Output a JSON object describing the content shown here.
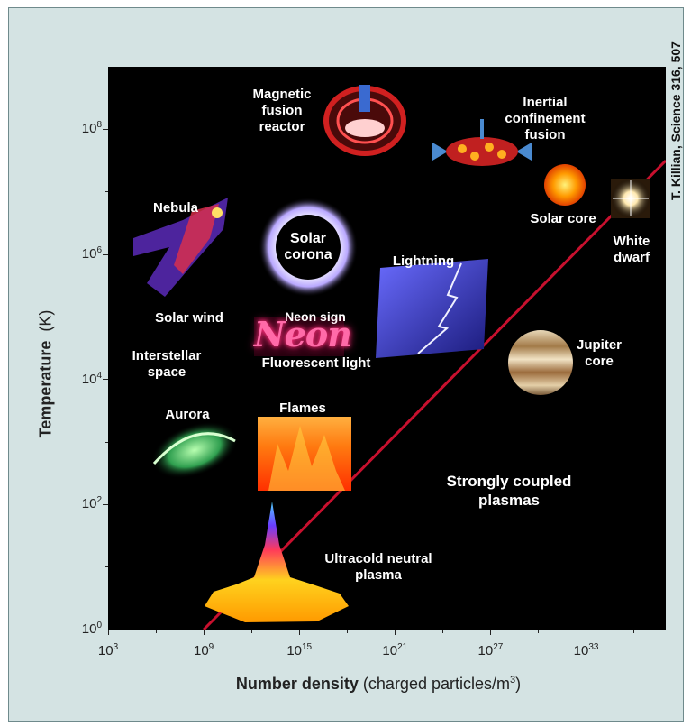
{
  "credit": "T. Killian, Science 316, 507",
  "chart_data": {
    "type": "scatter",
    "title": "",
    "ylabel": "Temperature",
    "ylabel_unit": "(K)",
    "xlabel": "Number density",
    "xlabel_unit": "(charged particles/m",
    "xlabel_unit_exp": "3",
    "xlabel_unit_close": ")",
    "xscale": "log",
    "yscale": "log",
    "x_exponent_range": [
      3,
      38
    ],
    "y_exponent_range": [
      0,
      9
    ],
    "x_ticks": [
      {
        "base": "10",
        "exp": "3",
        "value_exp": 3
      },
      {
        "base": "10",
        "exp": "9",
        "value_exp": 9
      },
      {
        "base": "10",
        "exp": "15",
        "value_exp": 15
      },
      {
        "base": "10",
        "exp": "21",
        "value_exp": 21
      },
      {
        "base": "10",
        "exp": "27",
        "value_exp": 27
      },
      {
        "base": "10",
        "exp": "33",
        "value_exp": 33
      }
    ],
    "y_ticks": [
      {
        "base": "10",
        "exp": "0",
        "value_exp": 0
      },
      {
        "base": "10",
        "exp": "2",
        "value_exp": 2
      },
      {
        "base": "10",
        "exp": "4",
        "value_exp": 4
      },
      {
        "base": "10",
        "exp": "6",
        "value_exp": 6
      },
      {
        "base": "10",
        "exp": "8",
        "value_exp": 8
      }
    ],
    "boundary_line": {
      "label": "Strongly coupled plasmas",
      "color": "#c8102e",
      "points_log10": [
        [
          9,
          0
        ],
        [
          38,
          7.5
        ]
      ]
    },
    "points": [
      {
        "label": [
          "Magnetic",
          "fusion",
          "reactor"
        ],
        "log_n": 20,
        "log_T": 8.1,
        "color": "#e23a3a"
      },
      {
        "label": [
          "Inertial",
          "confinement",
          "fusion"
        ],
        "log_n": 31,
        "log_T": 7.8,
        "color": "#ff8a1e"
      },
      {
        "label": [
          "Solar core"
        ],
        "log_n": 31.5,
        "log_T": 7.2,
        "color": "#ff9a00"
      },
      {
        "label": [
          "White",
          "dwarf"
        ],
        "log_n": 36,
        "log_T": 7,
        "color": "#ffffff"
      },
      {
        "label": [
          "Nebula"
        ],
        "log_n": 8,
        "log_T": 6.3,
        "color": "#b23bd1"
      },
      {
        "label": [
          "Solar",
          "corona"
        ],
        "log_n": 15,
        "log_T": 6.2,
        "color": "#ffffff"
      },
      {
        "label": [
          "Lightning"
        ],
        "log_n": 24.5,
        "log_T": 5.3,
        "color": "#7a78ff"
      },
      {
        "label": [
          "Solar wind"
        ],
        "log_n": 6.5,
        "log_T": 5,
        "color": "#ffffff"
      },
      {
        "label": [
          "Neon sign"
        ],
        "log_n": 16,
        "log_T": 4.8,
        "color": "#ff4f91"
      },
      {
        "label": [
          "Fluorescent light"
        ],
        "log_n": 17,
        "log_T": 4.3,
        "color": "#ffffff"
      },
      {
        "label": [
          "Interstellar",
          "space"
        ],
        "log_n": 6,
        "log_T": 4,
        "color": "#ffffff"
      },
      {
        "label": [
          "Jupiter",
          "core"
        ],
        "log_n": 31,
        "log_T": 4.2,
        "color": "#c8a56a"
      },
      {
        "label": [
          "Aurora"
        ],
        "log_n": 9,
        "log_T": 3.2,
        "color": "#3fbf5f"
      },
      {
        "label": [
          "Flames"
        ],
        "log_n": 16,
        "log_T": 3.2,
        "color": "#ff6a1a"
      },
      {
        "label": [
          "Ultracold neutral",
          "plasma"
        ],
        "log_n": 15,
        "log_T": 0.5,
        "color": "#ffd21e"
      }
    ]
  }
}
